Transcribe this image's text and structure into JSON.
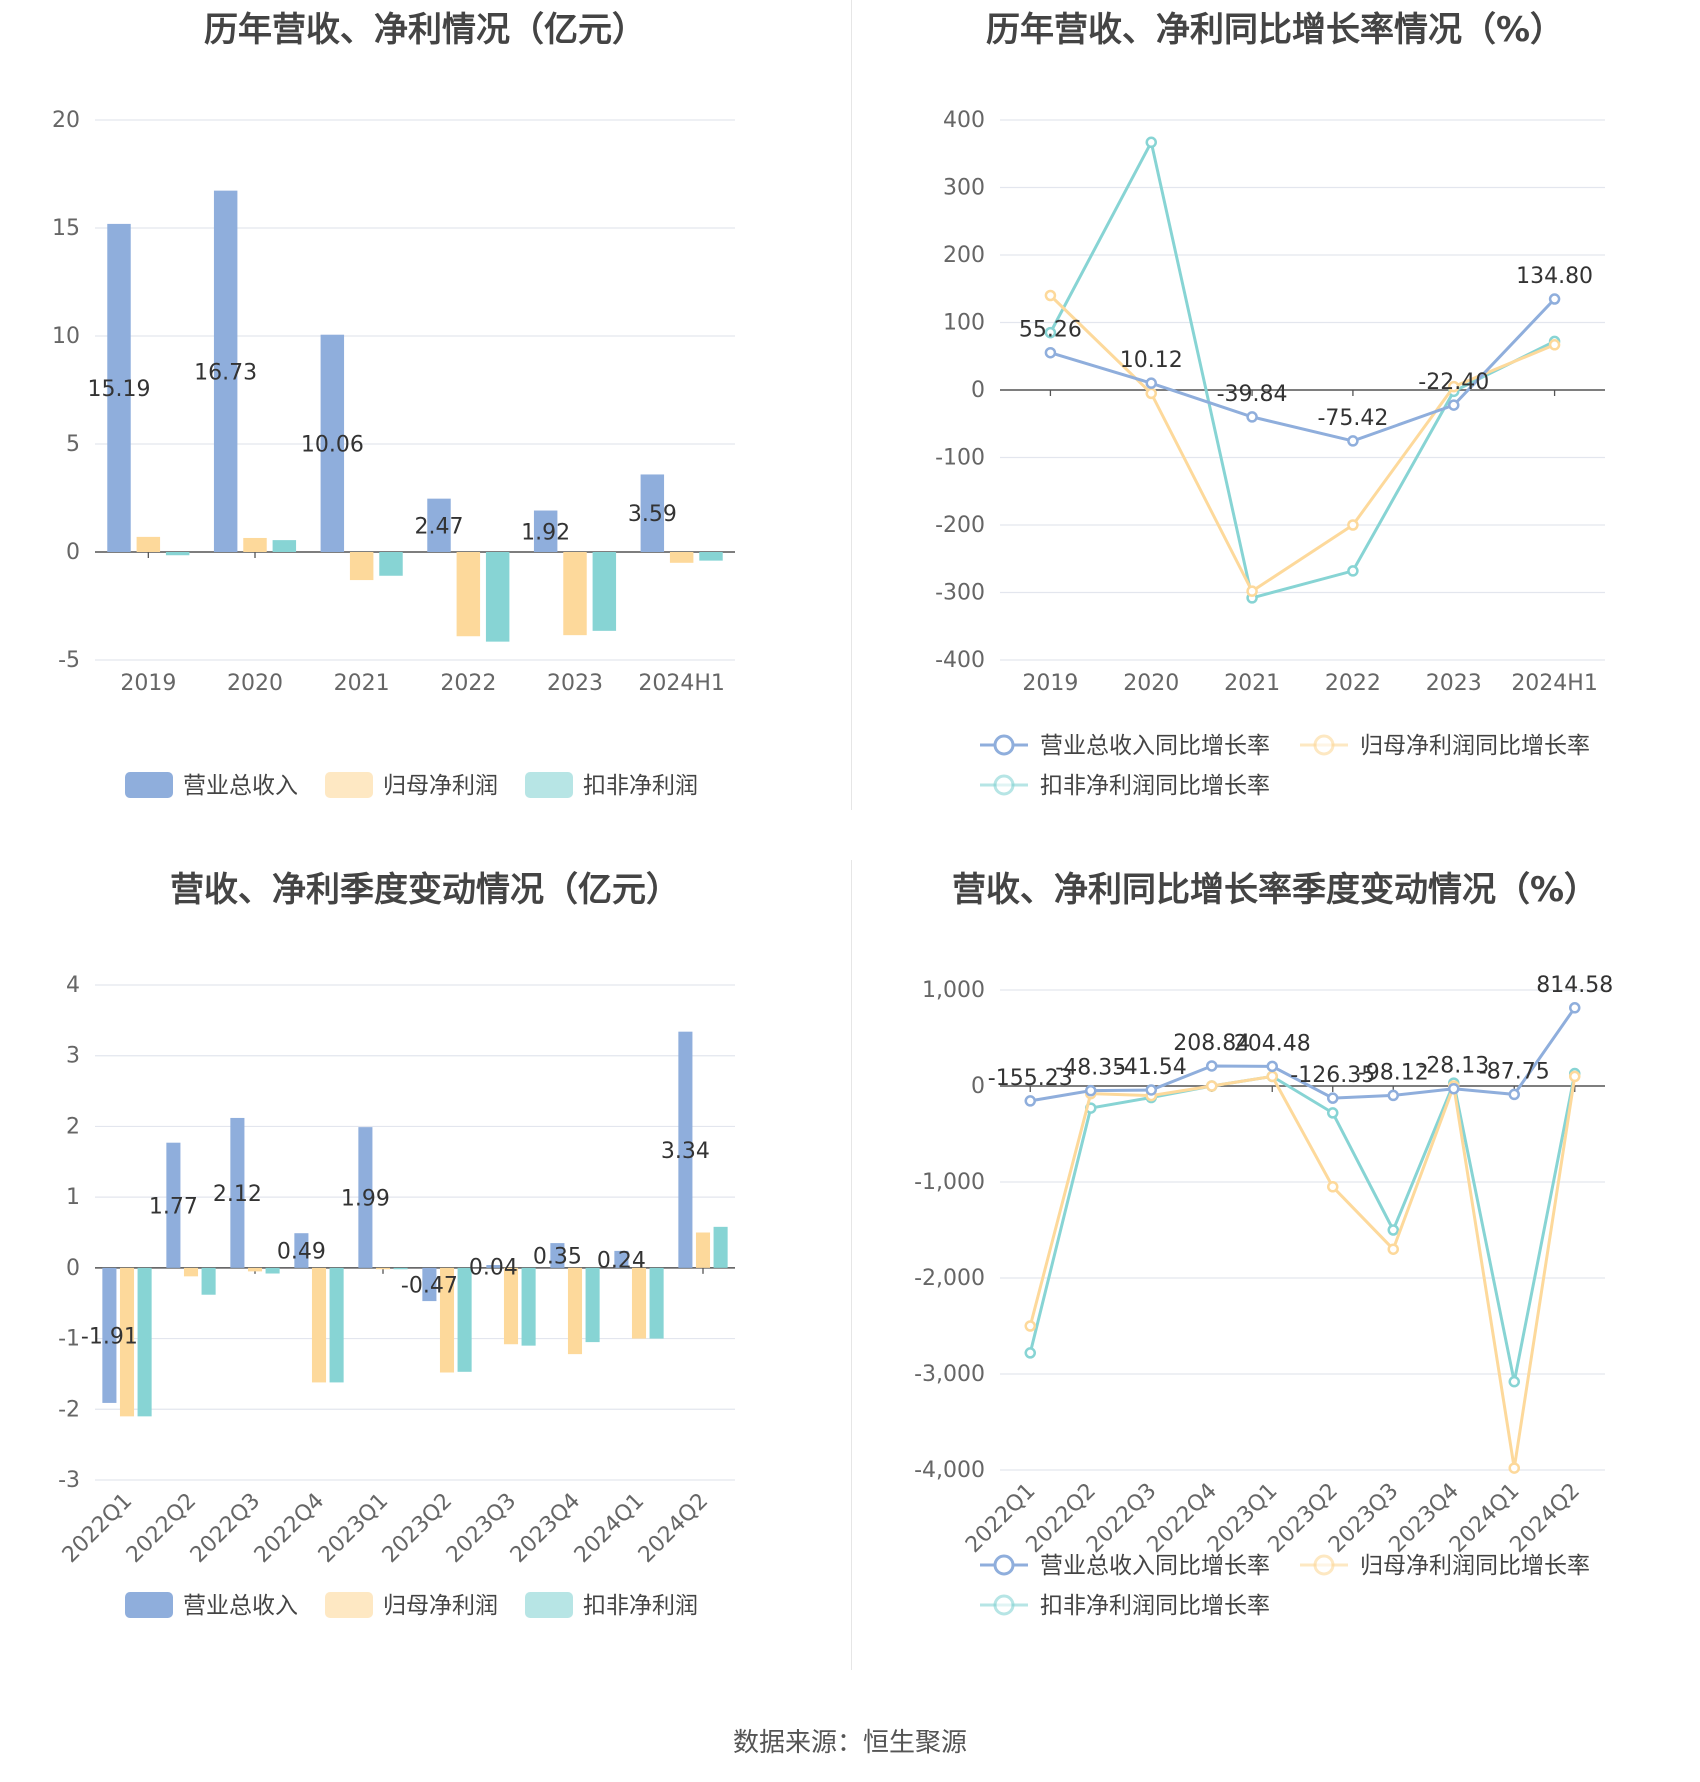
{
  "colors": {
    "revenue": "#8FAEDC",
    "net": "#FDD99B",
    "deduct": "#87D4D4"
  },
  "legend": {
    "bar": [
      "营业总收入",
      "归母净利润",
      "扣非净利润"
    ],
    "line": [
      "营业总收入同比增长率",
      "归母净利润同比增长率",
      "扣非净利润同比增长率"
    ]
  },
  "footer": "数据来源：恒生聚源",
  "chart_data": [
    {
      "type": "bar",
      "title": "历年营收、净利情况（亿元）",
      "categories": [
        "2019",
        "2020",
        "2021",
        "2022",
        "2023",
        "2024H1"
      ],
      "series": [
        {
          "name": "营业总收入",
          "values": [
            15.19,
            16.73,
            10.06,
            2.47,
            1.92,
            3.59
          ]
        },
        {
          "name": "归母净利润",
          "values": [
            0.7,
            0.65,
            -1.3,
            -3.9,
            -3.85,
            -0.5
          ]
        },
        {
          "name": "扣非净利润",
          "values": [
            -0.15,
            0.55,
            -1.1,
            -4.15,
            -3.65,
            -0.4
          ]
        }
      ],
      "labels": [
        "15.19",
        "16.73",
        "10.06",
        "2.47",
        "1.92",
        "3.59"
      ],
      "ylim": [
        -5,
        20
      ],
      "yticks": [
        20,
        15,
        10,
        5,
        0,
        -5
      ],
      "ytick_labels": [
        "20",
        "15",
        "10",
        "5",
        "0",
        "-5"
      ],
      "grid": true,
      "legend_position": "bottom"
    },
    {
      "type": "line",
      "title": "历年营收、净利同比增长率情况（%）",
      "categories": [
        "2019",
        "2020",
        "2021",
        "2022",
        "2023",
        "2024H1"
      ],
      "series": [
        {
          "name": "营业总收入同比增长率",
          "values": [
            55.26,
            10.12,
            -39.84,
            -75.42,
            -22.4,
            134.8
          ]
        },
        {
          "name": "归母净利润同比增长率",
          "values": [
            140,
            -5,
            -298,
            -200,
            5,
            67
          ]
        },
        {
          "name": "扣非净利润同比增长率",
          "values": [
            85,
            367,
            -308,
            -268,
            -2,
            72
          ]
        }
      ],
      "labels": [
        "55.26",
        "10.12",
        "-39.84",
        "-75.42",
        "-22.40",
        "134.80"
      ],
      "ylim": [
        -400,
        400
      ],
      "yticks": [
        400,
        300,
        200,
        100,
        0,
        -100,
        -200,
        -300,
        -400
      ],
      "ytick_labels": [
        "400",
        "300",
        "200",
        "100",
        "0",
        "-100",
        "-200",
        "-300",
        "-400"
      ],
      "grid": true,
      "legend_position": "bottom"
    },
    {
      "type": "bar",
      "title": "营收、净利季度变动情况（亿元）",
      "categories": [
        "2022Q1",
        "2022Q2",
        "2022Q3",
        "2022Q4",
        "2023Q1",
        "2023Q2",
        "2023Q3",
        "2023Q4",
        "2024Q1",
        "2024Q2"
      ],
      "series": [
        {
          "name": "营业总收入",
          "values": [
            -1.91,
            1.77,
            2.12,
            0.49,
            1.99,
            -0.47,
            0.04,
            0.35,
            0.24,
            3.34
          ]
        },
        {
          "name": "归母净利润",
          "values": [
            -2.1,
            -0.12,
            -0.05,
            -1.62,
            -0.02,
            -1.48,
            -1.08,
            -1.22,
            -1.0,
            0.5
          ]
        },
        {
          "name": "扣非净利润",
          "values": [
            -2.1,
            -0.38,
            -0.08,
            -1.62,
            -0.02,
            -1.47,
            -1.1,
            -1.05,
            -1.0,
            0.58
          ]
        }
      ],
      "labels": [
        "-1.91",
        "1.77",
        "2.12",
        "0.49",
        "1.99",
        "-0.47",
        "0.04",
        "0.35",
        "0.24",
        "3.34"
      ],
      "ylim": [
        -3,
        4
      ],
      "yticks": [
        4,
        3,
        2,
        1,
        0,
        -1,
        -2,
        -3
      ],
      "ytick_labels": [
        "4",
        "3",
        "2",
        "1",
        "0",
        "-1",
        "-2",
        "-3"
      ],
      "grid": true,
      "legend_position": "bottom"
    },
    {
      "type": "line",
      "title": "营收、净利同比增长率季度变动情况（%）",
      "categories": [
        "2022Q1",
        "2022Q2",
        "2022Q3",
        "2022Q4",
        "2023Q1",
        "2023Q2",
        "2023Q3",
        "2023Q4",
        "2024Q1",
        "2024Q2"
      ],
      "series": [
        {
          "name": "营业总收入同比增长率",
          "values": [
            -155.23,
            -48.35,
            -41.54,
            208.84,
            204.48,
            -126.35,
            -98.12,
            -28.13,
            -87.75,
            814.58
          ]
        },
        {
          "name": "归母净利润同比增长率",
          "values": [
            -2500,
            -80,
            -100,
            0,
            100,
            -1050,
            -1700,
            0,
            -3980,
            100
          ]
        },
        {
          "name": "扣非净利润同比增长率",
          "values": [
            -2780,
            -230,
            -120,
            0,
            100,
            -280,
            -1500,
            30,
            -3080,
            130
          ]
        }
      ],
      "labels": [
        "-155.23",
        "-48.35",
        "-41.54",
        "208.84",
        "204.48",
        "-126.35",
        "-98.12",
        "-28.13",
        "-87.75",
        "814.58"
      ],
      "ylim": [
        -4000,
        1000
      ],
      "yticks": [
        1000,
        0,
        -1000,
        -2000,
        -3000,
        -4000
      ],
      "ytick_labels": [
        "1,000",
        "0",
        "-1,000",
        "-2,000",
        "-3,000",
        "-4,000"
      ],
      "grid": true,
      "legend_position": "bottom"
    }
  ]
}
